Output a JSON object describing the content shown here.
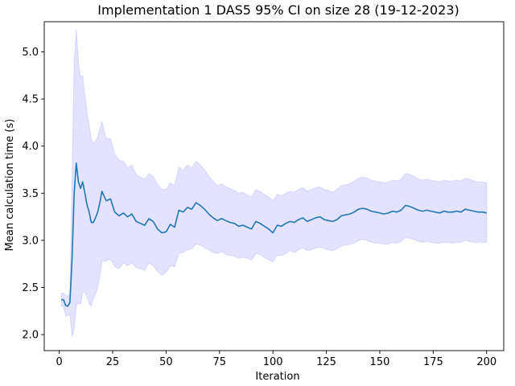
{
  "chart_data": {
    "type": "line",
    "title": "Implementation 1 DAS5 95% CI on size 28 (19-12-2023)",
    "xlabel": "Iteration",
    "ylabel": "Mean calculation time (s)",
    "xlim": [
      -7,
      208
    ],
    "ylim": [
      1.83,
      5.32
    ],
    "xticks": [
      0,
      25,
      50,
      75,
      100,
      125,
      150,
      175,
      200
    ],
    "yticks": [
      2.0,
      2.5,
      3.0,
      3.5,
      4.0,
      4.5,
      5.0
    ],
    "ytick_labels": [
      "2.0",
      "2.5",
      "3.0",
      "3.5",
      "4.0",
      "4.5",
      "5.0"
    ],
    "grid": false,
    "colors": {
      "line": "#1f77b4",
      "band": "#0000ff"
    },
    "band_opacity": 0.11,
    "series": [
      {
        "x": [
          1,
          2,
          3,
          4,
          5,
          6,
          7,
          8,
          9,
          10,
          11,
          12,
          13,
          14,
          15,
          16,
          17,
          18,
          19,
          20,
          22,
          24,
          26,
          28,
          30,
          32,
          34,
          36,
          38,
          40,
          42,
          44,
          46,
          48,
          50,
          52,
          54,
          56,
          58,
          60,
          62,
          64,
          66,
          68,
          70,
          72,
          74,
          76,
          78,
          80,
          82,
          84,
          86,
          88,
          90,
          92,
          94,
          96,
          98,
          100,
          102,
          104,
          106,
          108,
          110,
          112,
          114,
          116,
          118,
          120,
          122,
          124,
          126,
          128,
          130,
          132,
          134,
          136,
          138,
          140,
          142,
          144,
          146,
          148,
          150,
          152,
          154,
          156,
          158,
          160,
          162,
          164,
          166,
          168,
          170,
          172,
          174,
          176,
          178,
          180,
          182,
          184,
          186,
          188,
          190,
          192,
          194,
          196,
          198,
          200
        ],
        "y": [
          2.37,
          2.37,
          2.31,
          2.3,
          2.34,
          2.8,
          3.5,
          3.82,
          3.62,
          3.55,
          3.62,
          3.5,
          3.38,
          3.3,
          3.19,
          3.19,
          3.24,
          3.3,
          3.4,
          3.52,
          3.42,
          3.44,
          3.3,
          3.26,
          3.29,
          3.25,
          3.28,
          3.2,
          3.18,
          3.16,
          3.23,
          3.2,
          3.12,
          3.08,
          3.09,
          3.17,
          3.14,
          3.32,
          3.3,
          3.35,
          3.33,
          3.4,
          3.37,
          3.33,
          3.28,
          3.24,
          3.21,
          3.23,
          3.21,
          3.19,
          3.18,
          3.15,
          3.16,
          3.14,
          3.12,
          3.2,
          3.18,
          3.15,
          3.12,
          3.08,
          3.16,
          3.15,
          3.18,
          3.2,
          3.19,
          3.22,
          3.24,
          3.2,
          3.22,
          3.24,
          3.25,
          3.22,
          3.21,
          3.2,
          3.22,
          3.26,
          3.27,
          3.28,
          3.3,
          3.33,
          3.34,
          3.33,
          3.31,
          3.3,
          3.29,
          3.28,
          3.29,
          3.31,
          3.3,
          3.32,
          3.37,
          3.36,
          3.34,
          3.32,
          3.31,
          3.32,
          3.31,
          3.3,
          3.29,
          3.31,
          3.3,
          3.3,
          3.31,
          3.3,
          3.33,
          3.32,
          3.31,
          3.3,
          3.3,
          3.29
        ],
        "ci_low": [
          2.3,
          2.3,
          2.2,
          2.2,
          2.22,
          1.98,
          2.05,
          2.3,
          2.34,
          2.32,
          2.45,
          2.45,
          2.4,
          2.33,
          2.3,
          2.38,
          2.43,
          2.5,
          2.62,
          2.78,
          2.78,
          2.8,
          2.72,
          2.7,
          2.76,
          2.73,
          2.76,
          2.71,
          2.7,
          2.68,
          2.76,
          2.73,
          2.67,
          2.63,
          2.66,
          2.73,
          2.72,
          2.86,
          2.87,
          2.9,
          2.91,
          2.96,
          2.95,
          2.92,
          2.9,
          2.87,
          2.86,
          2.88,
          2.85,
          2.84,
          2.83,
          2.81,
          2.82,
          2.81,
          2.79,
          2.86,
          2.85,
          2.82,
          2.79,
          2.77,
          2.84,
          2.84,
          2.86,
          2.89,
          2.87,
          2.9,
          2.92,
          2.89,
          2.9,
          2.92,
          2.93,
          2.91,
          2.9,
          2.89,
          2.91,
          2.94,
          2.95,
          2.96,
          2.97,
          3.0,
          3.01,
          3.0,
          2.98,
          2.97,
          2.97,
          2.96,
          2.96,
          2.98,
          2.97,
          2.99,
          3.03,
          3.02,
          3.01,
          2.99,
          2.98,
          2.99,
          2.98,
          2.97,
          2.97,
          2.98,
          2.98,
          2.97,
          2.98,
          2.98,
          3.0,
          2.99,
          2.98,
          2.98,
          2.98,
          2.98
        ],
        "ci_high": [
          2.44,
          2.44,
          2.42,
          2.4,
          2.45,
          3.6,
          4.9,
          5.24,
          4.9,
          4.73,
          4.75,
          4.55,
          4.35,
          4.22,
          4.08,
          4.03,
          4.05,
          4.1,
          4.18,
          4.26,
          4.08,
          4.08,
          3.92,
          3.85,
          3.84,
          3.77,
          3.8,
          3.7,
          3.67,
          3.65,
          3.71,
          3.68,
          3.59,
          3.54,
          3.54,
          3.61,
          3.58,
          3.78,
          3.74,
          3.8,
          3.77,
          3.84,
          3.8,
          3.75,
          3.68,
          3.63,
          3.58,
          3.6,
          3.57,
          3.55,
          3.53,
          3.5,
          3.51,
          3.48,
          3.46,
          3.54,
          3.52,
          3.49,
          3.46,
          3.42,
          3.49,
          3.47,
          3.5,
          3.52,
          3.51,
          3.54,
          3.56,
          3.52,
          3.54,
          3.56,
          3.57,
          3.54,
          3.53,
          3.51,
          3.54,
          3.58,
          3.59,
          3.6,
          3.63,
          3.66,
          3.67,
          3.66,
          3.64,
          3.63,
          3.62,
          3.61,
          3.62,
          3.64,
          3.63,
          3.65,
          3.71,
          3.7,
          3.68,
          3.65,
          3.64,
          3.65,
          3.64,
          3.63,
          3.62,
          3.64,
          3.63,
          3.63,
          3.64,
          3.63,
          3.66,
          3.65,
          3.63,
          3.62,
          3.62,
          3.61
        ]
      }
    ]
  }
}
